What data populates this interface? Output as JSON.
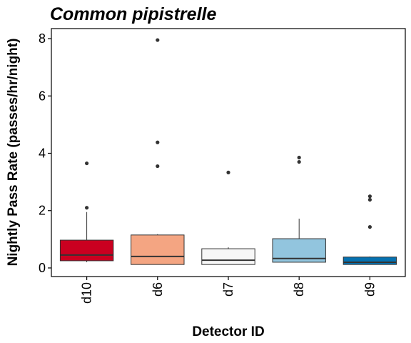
{
  "chart_data": {
    "type": "boxplot",
    "title": "Common pipistrelle",
    "xlabel": "Detector ID",
    "ylabel": "Nightly Pass Rate (passes/hr/night)",
    "ylim": [
      -0.3,
      8.35
    ],
    "yticks": [
      0,
      2,
      4,
      6,
      8
    ],
    "grid": false,
    "legend": "none",
    "categories": [
      "d10",
      "d6",
      "d7",
      "d8",
      "d9"
    ],
    "boxes": [
      {
        "category": "d10",
        "whisker_low": 0.2,
        "q1": 0.25,
        "median": 0.45,
        "q3": 0.97,
        "whisker_high": 1.95,
        "outliers": [
          2.1,
          3.65
        ],
        "color": "#ca0020"
      },
      {
        "category": "d6",
        "whisker_low": 0.12,
        "q1": 0.12,
        "median": 0.4,
        "q3": 1.15,
        "whisker_high": 1.18,
        "outliers": [
          3.55,
          4.38,
          7.95
        ],
        "color": "#f4a582"
      },
      {
        "category": "d7",
        "whisker_low": 0.12,
        "q1": 0.12,
        "median": 0.27,
        "q3": 0.67,
        "whisker_high": 0.72,
        "outliers": [
          3.33
        ],
        "color": "#f7f7f7"
      },
      {
        "category": "d8",
        "whisker_low": 0.2,
        "q1": 0.2,
        "median": 0.33,
        "q3": 1.02,
        "whisker_high": 1.72,
        "outliers": [
          3.7,
          3.85
        ],
        "color": "#92c5de"
      },
      {
        "category": "d9",
        "whisker_low": 0.12,
        "q1": 0.12,
        "median": 0.2,
        "q3": 0.38,
        "whisker_high": 0.4,
        "outliers": [
          1.43,
          2.38,
          2.5
        ],
        "color": "#0571b0"
      }
    ]
  }
}
